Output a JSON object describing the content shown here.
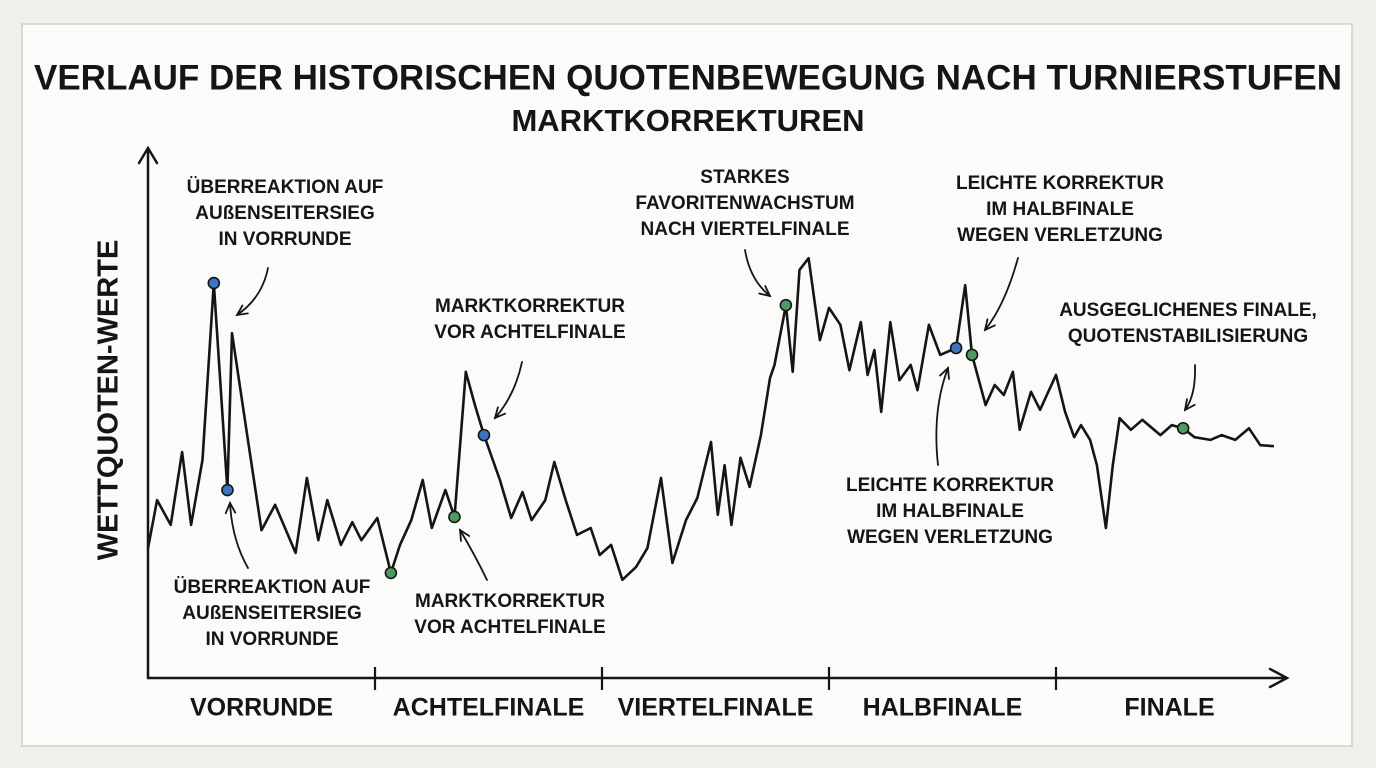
{
  "chart_data": {
    "type": "line",
    "title": "VERLAUF DER HISTORISCHEN QUOTENBEWEGUNG NACH TURNIERSTUFEN",
    "subtitle": "MARKTKORREKTUREN",
    "y_label": "WETTQUOTEN-WERTE",
    "categories": [
      "VORRUNDE",
      "ACHTELFINALE",
      "VIERTELFINALE",
      "HALBFINALE",
      "FINALE"
    ],
    "xlim": [
      0,
      5
    ],
    "ylim": [
      0,
      100
    ],
    "x": [
      0,
      0.04,
      0.1,
      0.15,
      0.19,
      0.24,
      0.29,
      0.35,
      0.37,
      0.44,
      0.5,
      0.56,
      0.65,
      0.7,
      0.75,
      0.79,
      0.85,
      0.9,
      0.94,
      1.01,
      1.07,
      1.11,
      1.16,
      1.21,
      1.25,
      1.31,
      1.35,
      1.4,
      1.44,
      1.48,
      1.55,
      1.6,
      1.65,
      1.69,
      1.75,
      1.79,
      1.84,
      1.89,
      1.95,
      1.99,
      2.04,
      2.09,
      2.15,
      2.2,
      2.26,
      2.31,
      2.37,
      2.42,
      2.48,
      2.51,
      2.54,
      2.57,
      2.61,
      2.65,
      2.7,
      2.74,
      2.76,
      2.81,
      2.84,
      2.87,
      2.91,
      2.96,
      3.0,
      3.05,
      3.09,
      3.14,
      3.17,
      3.2,
      3.23,
      3.27,
      3.31,
      3.36,
      3.39,
      3.44,
      3.49,
      3.56,
      3.6,
      3.63,
      3.69,
      3.73,
      3.77,
      3.81,
      3.84,
      3.89,
      3.93,
      4.0,
      4.04,
      4.08,
      4.11,
      4.15,
      4.18,
      4.22,
      4.25,
      4.28,
      4.33,
      4.38,
      4.46,
      4.51,
      4.56,
      4.61,
      4.68,
      4.73,
      4.79,
      4.85,
      4.9,
      4.96
    ],
    "series": [
      {
        "color": "#151515",
        "values": [
          24.6,
          33.7,
          29.0,
          42.8,
          29.0,
          41.3,
          74.8,
          35.6,
          65.3,
          45.1,
          28.0,
          32.8,
          23.7,
          37.9,
          26.1,
          33.7,
          25.2,
          29.5,
          26.1,
          30.3,
          19.9,
          25.2,
          29.9,
          37.5,
          28.4,
          35.6,
          30.5,
          58.0,
          51.7,
          46.0,
          37.5,
          30.3,
          35.2,
          29.9,
          33.7,
          40.9,
          33.7,
          27.1,
          28.4,
          23.3,
          25.2,
          18.6,
          21.0,
          24.6,
          37.9,
          21.8,
          29.9,
          34.1,
          44.7,
          30.9,
          40.3,
          29.0,
          41.7,
          36.2,
          46.0,
          56.8,
          59.3,
          70.6,
          58.0,
          77.3,
          79.5,
          64.0,
          70.1,
          66.9,
          58.3,
          67.4,
          57.4,
          62.1,
          50.4,
          67.4,
          56.4,
          59.3,
          54.5,
          66.9,
          61.2,
          62.5,
          74.4,
          61.2,
          51.7,
          55.5,
          53.6,
          58.0,
          47.0,
          54.2,
          50.8,
          57.4,
          50.4,
          45.6,
          47.9,
          45.1,
          40.3,
          28.4,
          40.3,
          49.2,
          47.0,
          48.9,
          46.0,
          47.9,
          47.3,
          45.6,
          45.1,
          46.0,
          45.1,
          47.3,
          44.1,
          43.9
        ]
      }
    ],
    "highlights": [
      {
        "index": 6,
        "color": "#3b74c2"
      },
      {
        "index": 7,
        "color": "#3b74c2"
      },
      {
        "index": 20,
        "color": "#4f9a62"
      },
      {
        "index": 26,
        "color": "#4f9a62"
      },
      {
        "index": 29,
        "color": "#3b74c2"
      },
      {
        "index": 57,
        "color": "#4f9a62"
      },
      {
        "index": 75,
        "color": "#3b74c2"
      },
      {
        "index": 77,
        "color": "#4f9a62"
      },
      {
        "index": 98,
        "color": "#4f9a62"
      }
    ],
    "annotations": [
      {
        "lines": [
          "ÜBERREAKTION AUF",
          "AUßENSEITERSIEG",
          "IN VORRUNDE"
        ],
        "point": 6
      },
      {
        "lines": [
          "ÜBERREAKTION AUF",
          "AUßENSEITERSIEG",
          "IN VORRUNDE"
        ],
        "point": 7
      },
      {
        "lines": [
          "MARKTKORREKTUR",
          "VOR ACHTELFINALE"
        ],
        "point": 29
      },
      {
        "lines": [
          "MARKTKORREKTUR",
          "VOR ACHTELFINALE"
        ],
        "point": 26
      },
      {
        "lines": [
          "STARKES",
          "FAVORITENWACHSTUM",
          "NACH VIERTELFINALE"
        ],
        "point": 57
      },
      {
        "lines": [
          "LEICHTE KORREKTUR",
          "IM HALBFINALE",
          "WEGEN VERLETZUNG"
        ],
        "point": 77
      },
      {
        "lines": [
          "LEICHTE KORREKTUR",
          "IM HALBFINALE",
          "WEGEN VERLETZUNG"
        ],
        "point": 75
      },
      {
        "lines": [
          "AUSGEGLICHENES FINALE,",
          "QUOTENSTABILISIERUNG"
        ],
        "point": 98
      }
    ]
  }
}
